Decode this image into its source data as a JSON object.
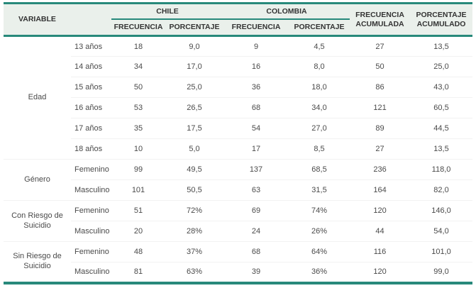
{
  "colors": {
    "teal": "#28897B",
    "header_bg": "#EAF0EB",
    "header_text": "#333333",
    "body_text": "#4A4A4A",
    "row_separator": "#F2F2F2"
  },
  "table": {
    "header": {
      "variable_label": "VARIABLE",
      "country_groups": [
        {
          "label": "CHILE",
          "subcolumns": [
            "FRECUENCIA",
            "PORCENTAJE"
          ]
        },
        {
          "label": "COLOMBIA",
          "subcolumns": [
            "FRECUENCIA",
            "PORCENTAJE"
          ]
        }
      ],
      "totals_columns": [
        "FRECUENCIA ACUMULADA",
        "PORCENTAJE ACUMULADO"
      ]
    },
    "groups": [
      {
        "variable": "Edad",
        "rows": [
          {
            "label": "13 años",
            "values": [
              "18",
              "9,0",
              "9",
              "4,5",
              "27",
              "13,5"
            ]
          },
          {
            "label": "14 años",
            "values": [
              "34",
              "17,0",
              "16",
              "8,0",
              "50",
              "25,0"
            ]
          },
          {
            "label": "15 años",
            "values": [
              "50",
              "25,0",
              "36",
              "18,0",
              "86",
              "43,0"
            ]
          },
          {
            "label": "16 años",
            "values": [
              "53",
              "26,5",
              "68",
              "34,0",
              "121",
              "60,5"
            ]
          },
          {
            "label": "17 años",
            "values": [
              "35",
              "17,5",
              "54",
              "27,0",
              "89",
              "44,5"
            ]
          },
          {
            "label": "18 años",
            "values": [
              "10",
              "5,0",
              "17",
              "8,5",
              "27",
              "13,5"
            ]
          }
        ]
      },
      {
        "variable": "Género",
        "rows": [
          {
            "label": "Femenino",
            "values": [
              "99",
              "49,5",
              "137",
              "68,5",
              "236",
              "118,0"
            ]
          },
          {
            "label": "Masculino",
            "values": [
              "101",
              "50,5",
              "63",
              "31,5",
              "164",
              "82,0"
            ]
          }
        ]
      },
      {
        "variable": "Con Riesgo de Suicidio",
        "rows": [
          {
            "label": "Femenino",
            "values": [
              "51",
              "72%",
              "69",
              "74%",
              "120",
              "146,0"
            ]
          },
          {
            "label": "Masculino",
            "values": [
              "20",
              "28%",
              "24",
              "26%",
              "44",
              "54,0"
            ]
          }
        ]
      },
      {
        "variable": "Sin Riesgo de Suicidio",
        "rows": [
          {
            "label": "Femenino",
            "values": [
              "48",
              "37%",
              "68",
              "64%",
              "116",
              "101,0"
            ]
          },
          {
            "label": "Masculino",
            "values": [
              "81",
              "63%",
              "39",
              "36%",
              "120",
              "99,0"
            ]
          }
        ]
      }
    ]
  }
}
